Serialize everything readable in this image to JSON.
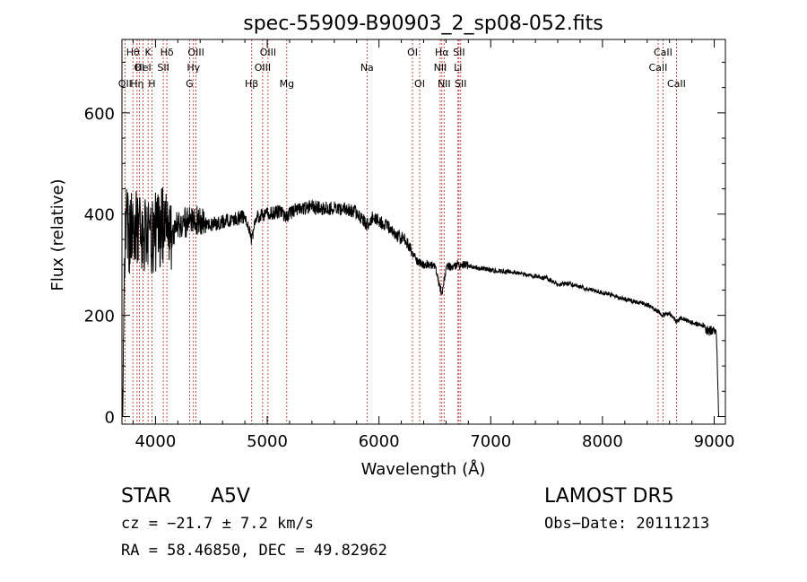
{
  "chart_data": {
    "type": "line",
    "title": "spec-55909-B90903_2_sp08-052.fits",
    "xlabel": "Wavelength (Å)",
    "ylabel": "Flux (relative)",
    "xlim": [
      3700,
      9100
    ],
    "ylim": [
      -15,
      745
    ],
    "x_ticks": [
      4000,
      5000,
      6000,
      7000,
      8000,
      9000
    ],
    "y_ticks": [
      0,
      200,
      400,
      600
    ],
    "grid": false,
    "line_color": "#000000",
    "marker_color": "#b22222",
    "series": [
      {
        "anchors": [
          [
            3700,
            0
          ],
          [
            3710,
            60
          ],
          [
            3720,
            300
          ],
          [
            3740,
            420
          ],
          [
            3760,
            330
          ],
          [
            3790,
            380
          ],
          [
            3830,
            370
          ],
          [
            3870,
            360
          ],
          [
            3900,
            355
          ],
          [
            3950,
            360
          ],
          [
            4000,
            365
          ],
          [
            4050,
            375
          ],
          [
            4100,
            370
          ],
          [
            4150,
            365
          ],
          [
            4200,
            380
          ],
          [
            4300,
            385
          ],
          [
            4400,
            390
          ],
          [
            4500,
            380
          ],
          [
            4600,
            385
          ],
          [
            4700,
            390
          ],
          [
            4800,
            395
          ],
          [
            4861,
            350
          ],
          [
            4900,
            395
          ],
          [
            5000,
            400
          ],
          [
            5100,
            405
          ],
          [
            5175,
            395
          ],
          [
            5250,
            410
          ],
          [
            5400,
            415
          ],
          [
            5500,
            410
          ],
          [
            5600,
            412
          ],
          [
            5700,
            408
          ],
          [
            5800,
            405
          ],
          [
            5893,
            380
          ],
          [
            5950,
            395
          ],
          [
            6050,
            380
          ],
          [
            6150,
            360
          ],
          [
            6250,
            345
          ],
          [
            6300,
            320
          ],
          [
            6350,
            305
          ],
          [
            6400,
            300
          ],
          [
            6500,
            298
          ],
          [
            6563,
            240
          ],
          [
            6600,
            295
          ],
          [
            6700,
            300
          ],
          [
            6800,
            298
          ],
          [
            6900,
            292
          ],
          [
            7000,
            290
          ],
          [
            7100,
            287
          ],
          [
            7200,
            285
          ],
          [
            7300,
            280
          ],
          [
            7400,
            277
          ],
          [
            7500,
            273
          ],
          [
            7600,
            262
          ],
          [
            7700,
            262
          ],
          [
            7800,
            257
          ],
          [
            7900,
            250
          ],
          [
            8000,
            245
          ],
          [
            8100,
            239
          ],
          [
            8200,
            232
          ],
          [
            8300,
            227
          ],
          [
            8400,
            221
          ],
          [
            8498,
            208
          ],
          [
            8542,
            200
          ],
          [
            8600,
            205
          ],
          [
            8662,
            188
          ],
          [
            8700,
            195
          ],
          [
            8800,
            186
          ],
          [
            8900,
            178
          ],
          [
            8950,
            168
          ],
          [
            9000,
            175
          ],
          [
            9020,
            160
          ],
          [
            9040,
            0
          ]
        ]
      }
    ],
    "lines": [
      {
        "label": "OII",
        "x": 3727,
        "row": 3
      },
      {
        "label": "Hθ",
        "x": 3798,
        "row": 1
      },
      {
        "label": "Hη",
        "x": 3835,
        "row": 3
      },
      {
        "label": "OI",
        "x": 3855,
        "row": 2
      },
      {
        "label": "K",
        "x": 3934,
        "row": 1
      },
      {
        "label": "H",
        "x": 3968,
        "row": 3
      },
      {
        "label": "HeI",
        "x": 3889,
        "row": 2
      },
      {
        "label": "SII",
        "x": 4070,
        "row": 2
      },
      {
        "label": "Hδ",
        "x": 4102,
        "row": 1
      },
      {
        "label": "G",
        "x": 4305,
        "row": 3
      },
      {
        "label": "Hγ",
        "x": 4340,
        "row": 2
      },
      {
        "label": "OIII",
        "x": 4363,
        "row": 1
      },
      {
        "label": "Hβ",
        "x": 4861,
        "row": 3
      },
      {
        "label": "OIII",
        "x": 4959,
        "row": 2
      },
      {
        "label": "OIII",
        "x": 5007,
        "row": 1
      },
      {
        "label": "Mg",
        "x": 5175,
        "row": 3
      },
      {
        "label": "Na",
        "x": 5893,
        "row": 2
      },
      {
        "label": "OI",
        "x": 6300,
        "row": 1
      },
      {
        "label": "OI",
        "x": 6364,
        "row": 3
      },
      {
        "label": "NII",
        "x": 6548,
        "row": 2
      },
      {
        "label": "Hα",
        "x": 6563,
        "row": 1
      },
      {
        "label": "NII",
        "x": 6583,
        "row": 3
      },
      {
        "label": "Li",
        "x": 6707,
        "row": 2
      },
      {
        "label": "SII",
        "x": 6716,
        "row": 1
      },
      {
        "label": "SII",
        "x": 6731,
        "row": 3
      },
      {
        "label": "CaII",
        "x": 8498,
        "row": 2
      },
      {
        "label": "CaII",
        "x": 8542,
        "row": 1
      },
      {
        "label": "CaII",
        "x": 8662,
        "row": 3
      }
    ]
  },
  "info": {
    "object_class": "STAR",
    "subclass": "A5V",
    "redshift": "cz = −21.7 ± 7.2 km/s",
    "coords": "RA =  58.46850, DEC =  49.82962",
    "survey": "LAMOST  DR5",
    "obs_date": "Obs−Date: 20111213"
  }
}
